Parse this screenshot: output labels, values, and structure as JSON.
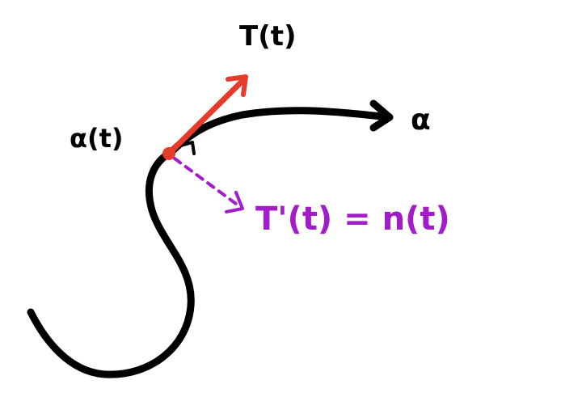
{
  "labels": {
    "tangent": "T(t)",
    "point": "α(t)",
    "curve": "α",
    "normal": "T'(t) = n(t)"
  },
  "colors": {
    "curve": "#000000",
    "tangent": "#e63a2a",
    "normal": "#a21cc9",
    "background": "#ffffff"
  },
  "icons": {
    "right_angle": "right-angle-mark",
    "curve_arrowhead": "arrowhead",
    "tangent_arrowhead": "arrowhead",
    "normal_arrowhead": "dashed-arrowhead"
  }
}
